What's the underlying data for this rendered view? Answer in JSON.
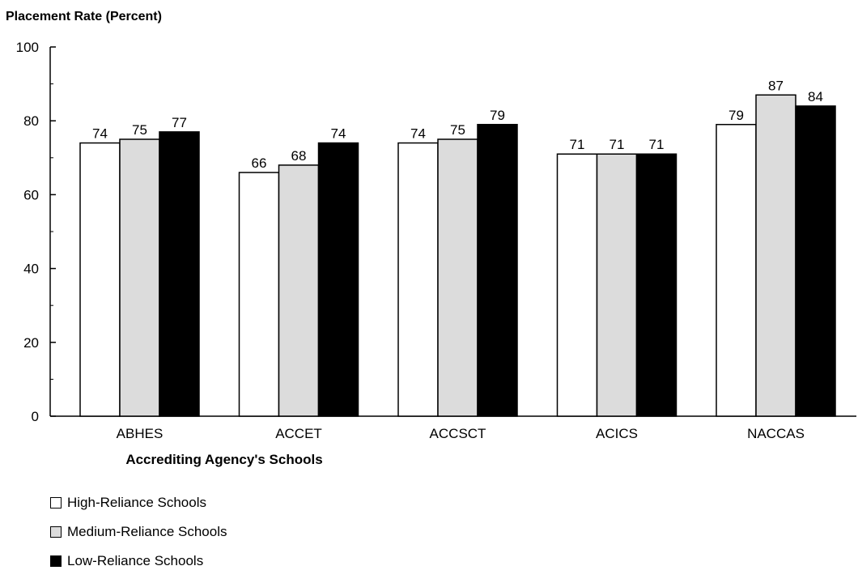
{
  "chart_data": {
    "type": "bar",
    "title": "Placement Rate (Percent)",
    "xlabel": "Accrediting Agency's Schools",
    "ylabel": "Placement Rate (Percent)",
    "ylim": [
      0,
      100
    ],
    "yticks": [
      0,
      20,
      40,
      60,
      80,
      100
    ],
    "grid": false,
    "legend_placement": "bottom-left",
    "categories": [
      "ABHES",
      "ACCET",
      "ACCSCT",
      "ACICS",
      "NACCAS"
    ],
    "series": [
      {
        "name": "High-Reliance Schools",
        "color": "#ffffff",
        "values": [
          74,
          66,
          74,
          71,
          79
        ]
      },
      {
        "name": "Medium-Reliance Schools",
        "color": "#dcdcdc",
        "values": [
          75,
          68,
          75,
          71,
          87
        ]
      },
      {
        "name": "Low-Reliance Schools",
        "color": "#000000",
        "values": [
          77,
          74,
          79,
          71,
          84
        ]
      }
    ]
  }
}
